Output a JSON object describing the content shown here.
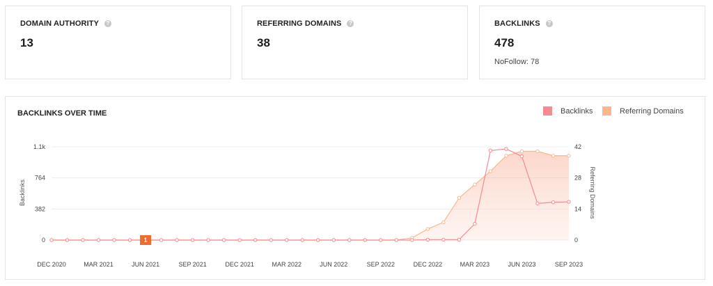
{
  "stats": {
    "domain_authority": {
      "label": "DOMAIN AUTHORITY",
      "value": "13"
    },
    "referring_domains": {
      "label": "REFERRING DOMAINS",
      "value": "38"
    },
    "backlinks": {
      "label": "BACKLINKS",
      "value": "478",
      "sub": "NoFollow: 78"
    }
  },
  "help_icon_glyph": "?",
  "colors": {
    "backlinks": "#f58a8f",
    "referring": "#f8b88b",
    "marker": "#ef6b2e"
  },
  "chart_data": {
    "type": "line",
    "title": "BACKLINKS OVER TIME",
    "x": [
      "DEC 2020",
      "JAN 2021",
      "FEB 2021",
      "MAR 2021",
      "APR 2021",
      "MAY 2021",
      "JUN 2021",
      "JUL 2021",
      "AUG 2021",
      "SEP 2021",
      "OCT 2021",
      "NOV 2021",
      "DEC 2021",
      "JAN 2022",
      "FEB 2022",
      "MAR 2022",
      "APR 2022",
      "MAY 2022",
      "JUN 2022",
      "JUL 2022",
      "AUG 2022",
      "SEP 2022",
      "OCT 2022",
      "NOV 2022",
      "DEC 2022",
      "JAN 2023",
      "FEB 2023",
      "MAR 2023",
      "APR 2023",
      "MAY 2023",
      "JUN 2023",
      "JUL 2023",
      "AUG 2023",
      "SEP 2023"
    ],
    "x_tick_labels": [
      "DEC 2020",
      "MAR 2021",
      "JUN 2021",
      "SEP 2021",
      "DEC 2021",
      "MAR 2022",
      "JUN 2022",
      "SEP 2022",
      "DEC 2022",
      "MAR 2023",
      "JUN 2023",
      "SEP 2023"
    ],
    "ylabel": "Backlinks",
    "y2label": "Referring Domains",
    "y_ticks": [
      "0",
      "382",
      "764",
      "1.1k"
    ],
    "y2_ticks": [
      "0",
      "14",
      "28",
      "42"
    ],
    "ylim": [
      0,
      1146
    ],
    "y2lim": [
      0,
      42
    ],
    "legend_position": "top-right",
    "grid": true,
    "series": [
      {
        "name": "Backlinks",
        "axis": "left",
        "values": [
          0,
          0,
          0,
          0,
          0,
          0,
          0,
          0,
          0,
          0,
          0,
          0,
          0,
          0,
          0,
          0,
          0,
          0,
          0,
          0,
          0,
          0,
          0,
          0,
          5,
          5,
          5,
          200,
          1100,
          1120,
          1030,
          450,
          465,
          470
        ]
      },
      {
        "name": "Referring Domains",
        "axis": "right",
        "values": [
          0,
          0,
          0,
          0,
          0,
          0,
          0,
          0,
          0,
          0,
          0,
          0,
          0,
          0,
          0,
          0,
          0,
          0,
          0,
          0,
          0,
          0,
          0,
          1,
          5,
          8,
          19,
          25,
          31,
          38,
          40,
          40,
          38,
          38
        ]
      }
    ],
    "annotations": [
      {
        "x": "JUN 2021",
        "label": "1"
      }
    ]
  }
}
